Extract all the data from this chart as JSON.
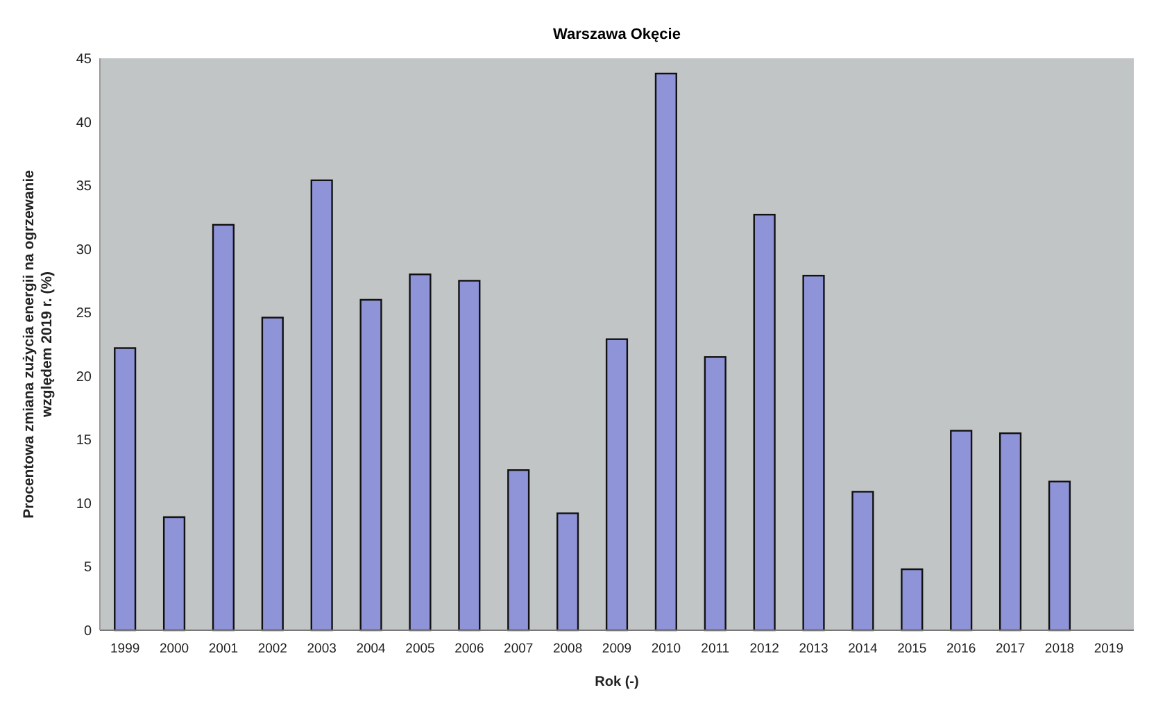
{
  "chart_data": {
    "type": "bar",
    "title": "Warszawa Okęcie",
    "xlabel": "Rok (-)",
    "ylabel": "Procentowa zmiana zużycia energii na ogrzewanie względem 2019 r. (%)",
    "categories": [
      "1999",
      "2000",
      "2001",
      "2002",
      "2003",
      "2004",
      "2005",
      "2006",
      "2007",
      "2008",
      "2009",
      "2010",
      "2011",
      "2012",
      "2013",
      "2014",
      "2015",
      "2016",
      "2017",
      "2018",
      "2019"
    ],
    "values": [
      22.2,
      8.9,
      31.9,
      24.6,
      35.4,
      26.0,
      28.0,
      27.5,
      12.6,
      9.2,
      22.9,
      43.8,
      21.5,
      32.7,
      27.9,
      10.9,
      4.8,
      15.7,
      15.5,
      11.7,
      0
    ],
    "color": "#8f94d8",
    "ylim": [
      0,
      45
    ],
    "yticks": [
      0,
      5,
      10,
      15,
      20,
      25,
      30,
      35,
      40,
      45
    ],
    "grid": false
  }
}
